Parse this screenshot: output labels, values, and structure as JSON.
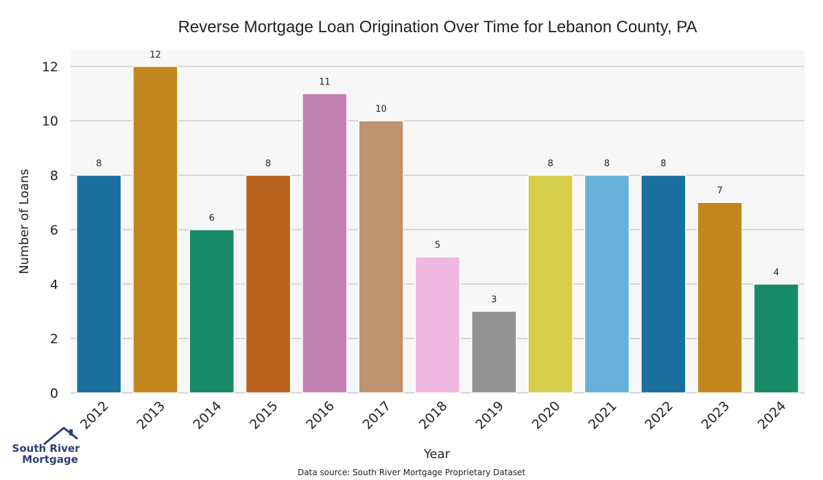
{
  "chart_data": {
    "type": "bar",
    "title": "Reverse Mortgage Loan Origination Over Time for Lebanon County, PA",
    "xlabel": "Year",
    "ylabel": "Number of Loans",
    "categories": [
      "2012",
      "2013",
      "2014",
      "2015",
      "2016",
      "2017",
      "2018",
      "2019",
      "2020",
      "2021",
      "2022",
      "2023",
      "2024"
    ],
    "values": [
      8,
      12,
      6,
      8,
      11,
      10,
      5,
      3,
      8,
      8,
      8,
      7,
      4
    ],
    "bar_colors": [
      "#1a6f9f",
      "#c4871f",
      "#178b67",
      "#b8611c",
      "#c283b4",
      "#bd9370",
      "#f0b8e0",
      "#939393",
      "#d6cd4a",
      "#67b0d9",
      "#1a6f9f",
      "#c4871f",
      "#178b67"
    ],
    "ylim": [
      0,
      12.6
    ],
    "yticks": [
      0,
      2,
      4,
      6,
      8,
      10,
      12
    ],
    "grid": true,
    "plot_background": "#f7f7f7",
    "grid_color": "#c8c8c8"
  },
  "source_note": "Data source: South River Mortgage Proprietary Dataset",
  "logo": {
    "line1": "South River",
    "line2": "Mortgage",
    "color": "#2a3f7a"
  }
}
